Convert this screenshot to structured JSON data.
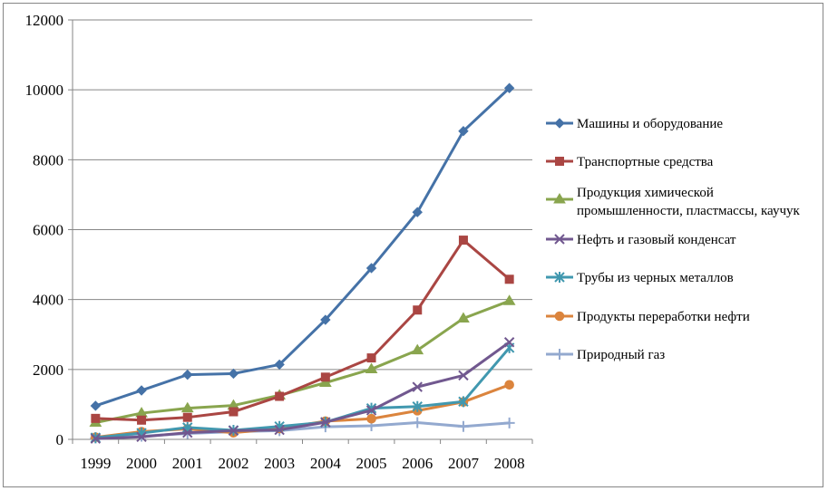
{
  "chart_data": {
    "type": "line",
    "title": "",
    "xlabel": "",
    "ylabel": "",
    "categories": [
      "1999",
      "2000",
      "2001",
      "2002",
      "2003",
      "2004",
      "2005",
      "2006",
      "2007",
      "2008"
    ],
    "ylim": [
      0,
      12000
    ],
    "yticks": [
      0,
      2000,
      4000,
      6000,
      8000,
      10000,
      12000
    ],
    "grid": "horizontal",
    "legend_position": "right",
    "series": [
      {
        "name": "Машины и оборудование",
        "color": "#4572a7",
        "marker": "diamond",
        "values": [
          960,
          1400,
          1850,
          1880,
          2140,
          3420,
          4900,
          6500,
          8820,
          10050
        ]
      },
      {
        "name": "Транспортные средства",
        "color": "#aa4643",
        "marker": "square",
        "values": [
          600,
          550,
          630,
          790,
          1230,
          1780,
          2330,
          3700,
          5700,
          4580
        ]
      },
      {
        "name": [
          "Продукция химической",
          "промышленности, пластмассы, каучук"
        ],
        "color": "#89a54e",
        "marker": "triangle",
        "values": [
          480,
          750,
          890,
          970,
          1260,
          1620,
          2010,
          2550,
          3460,
          3960
        ]
      },
      {
        "name": "Нефть и газовый конденсат",
        "color": "#71588f",
        "marker": "x",
        "values": [
          20,
          70,
          190,
          250,
          270,
          490,
          830,
          1500,
          1830,
          2780
        ]
      },
      {
        "name": "Трубы из черных металлов",
        "color": "#4198af",
        "marker": "asterisk",
        "values": [
          50,
          180,
          340,
          260,
          370,
          490,
          890,
          940,
          1080,
          2620
        ]
      },
      {
        "name": "Продукты переработки нефти",
        "color": "#db843d",
        "marker": "circle",
        "values": [
          60,
          220,
          300,
          190,
          310,
          520,
          590,
          820,
          1070,
          1560
        ]
      },
      {
        "name": "Природный газ",
        "color": "#93a9cf",
        "marker": "plus",
        "values": [
          40,
          90,
          170,
          220,
          250,
          360,
          390,
          480,
          370,
          470
        ]
      }
    ]
  }
}
